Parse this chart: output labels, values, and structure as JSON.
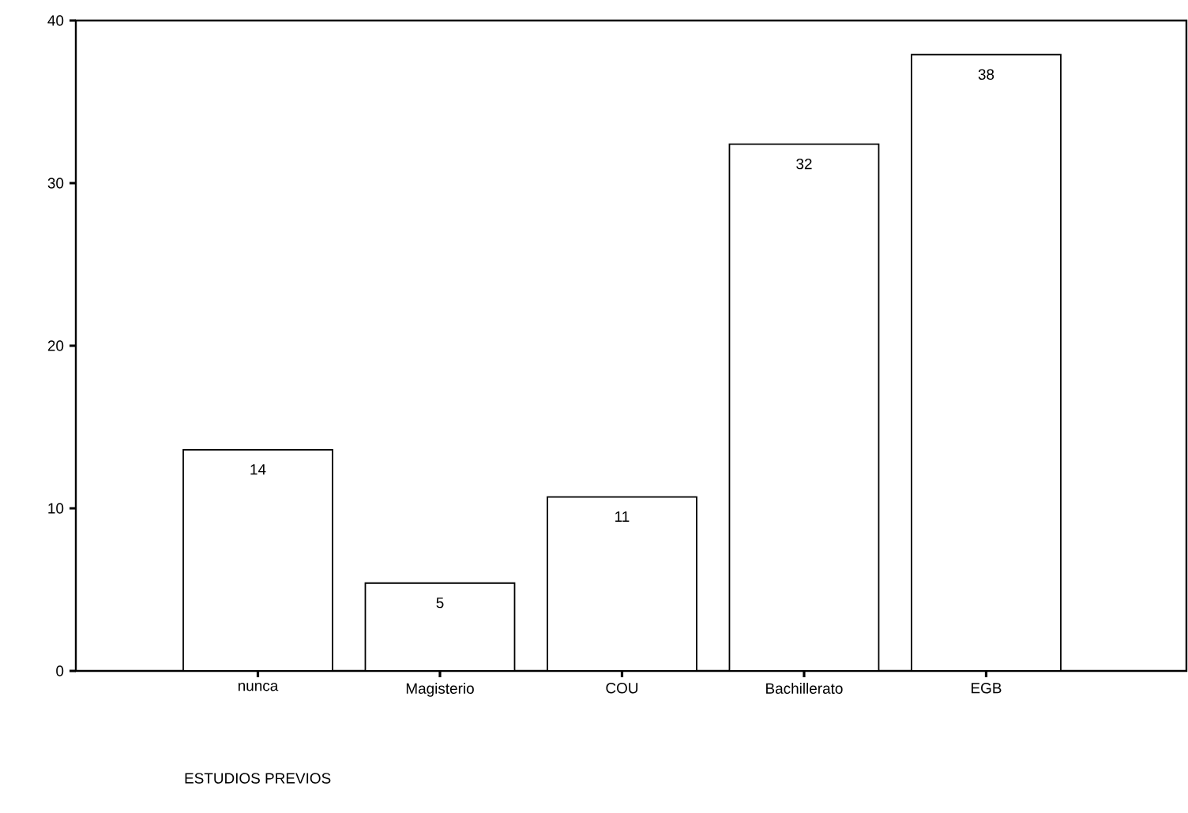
{
  "chart_data": {
    "type": "bar",
    "annotations": [
      "ESTUDIOS PREVIOS"
    ],
    "categories": [
      "nunca",
      "Magisterio",
      "COU",
      "Bachillerato",
      "EGB"
    ],
    "values": [
      13.6,
      5.4,
      10.7,
      32.4,
      37.9
    ],
    "value_labels": [
      "14",
      "5",
      "11",
      "32",
      "38"
    ],
    "color": "#ffffff",
    "ylim": [
      0,
      40
    ],
    "yticks": [
      0,
      10,
      20,
      30,
      40
    ],
    "grid": false
  }
}
